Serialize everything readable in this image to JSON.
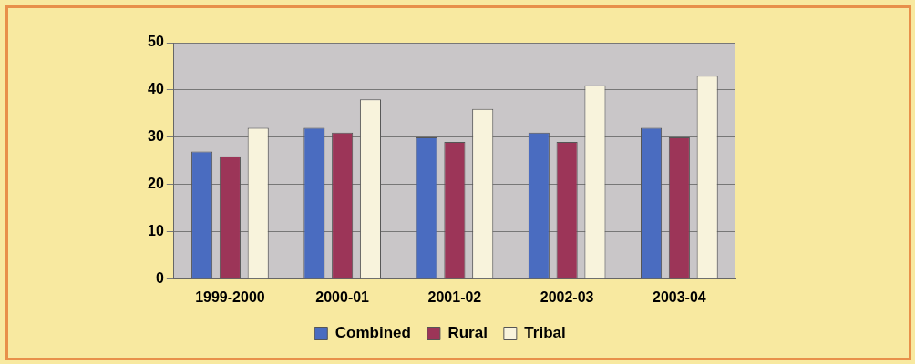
{
  "chart_data": {
    "type": "bar",
    "categories": [
      "1999-2000",
      "2000-01",
      "2001-02",
      "2002-03",
      "2003-04"
    ],
    "series": [
      {
        "name": "Combined",
        "color": "#4a6cc0",
        "values": [
          27,
          32,
          30,
          31,
          32
        ]
      },
      {
        "name": "Rural",
        "color": "#9c3558",
        "values": [
          26,
          31,
          29,
          29,
          30
        ]
      },
      {
        "name": "Tribal",
        "color": "#f8f3dc",
        "values": [
          32,
          38,
          36,
          41,
          43
        ]
      }
    ],
    "ylim": [
      0,
      50
    ],
    "yticks": [
      0,
      10,
      20,
      30,
      40,
      50
    ],
    "grid": "y",
    "legend": "bottom"
  }
}
